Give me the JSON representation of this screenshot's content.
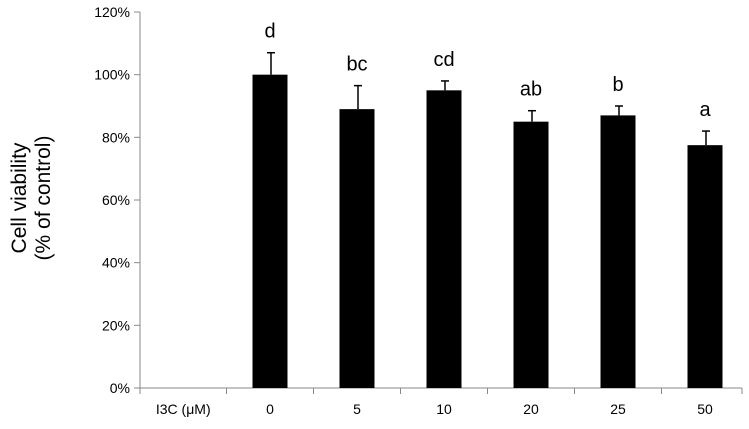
{
  "chart_data": {
    "type": "bar",
    "x_header": "I3C (μM)",
    "categories": [
      "0",
      "5",
      "10",
      "20",
      "25",
      "50"
    ],
    "values": [
      100,
      89,
      95,
      85,
      87,
      77.5
    ],
    "error_plus": [
      7,
      7.5,
      3,
      3.5,
      3,
      4.5
    ],
    "significance_labels": [
      "d",
      "bc",
      "cd",
      "ab",
      "b",
      "a"
    ],
    "ylabel_lines": [
      "Cell viability",
      "(% of control)"
    ],
    "ylim": [
      0,
      120
    ],
    "ytick_values": [
      0,
      20,
      40,
      60,
      80,
      100,
      120
    ],
    "ytick_labels": [
      "0%",
      "20%",
      "40%",
      "60%",
      "80%",
      "100%",
      "120%"
    ],
    "grid": false,
    "bar_color": "#000000"
  }
}
